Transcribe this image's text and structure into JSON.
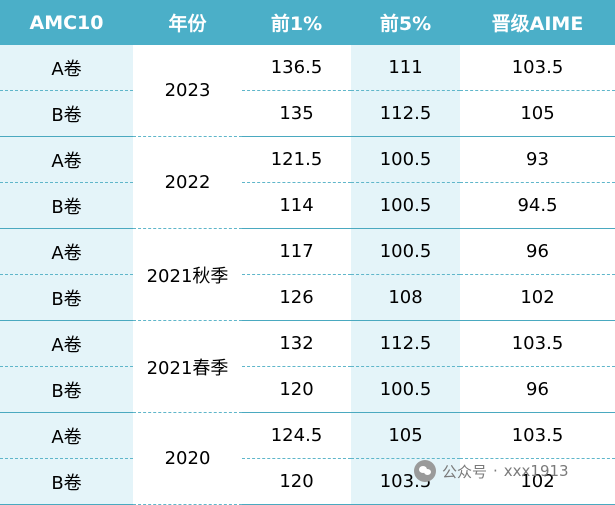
{
  "header": [
    "AMC10",
    "年份",
    "前1%",
    "前5%",
    "晋级AIME"
  ],
  "groups": [
    {
      "year": "2023",
      "rows": [
        {
          "paper": "A卷",
          "top1": "136.5",
          "top5": "111",
          "aime": "103.5"
        },
        {
          "paper": "B卷",
          "top1": "135",
          "top5": "112.5",
          "aime": "105"
        }
      ]
    },
    {
      "year": "2022",
      "rows": [
        {
          "paper": "A卷",
          "top1": "121.5",
          "top5": "100.5",
          "aime": "93"
        },
        {
          "paper": "B卷",
          "top1": "114",
          "top5": "100.5",
          "aime": "94.5"
        }
      ]
    },
    {
      "year": "2021秋季",
      "rows": [
        {
          "paper": "A卷",
          "top1": "117",
          "top5": "100.5",
          "aime": "96"
        },
        {
          "paper": "B卷",
          "top1": "126",
          "top5": "108",
          "aime": "102"
        }
      ]
    },
    {
      "year": "2021春季",
      "rows": [
        {
          "paper": "A卷",
          "top1": "132",
          "top5": "112.5",
          "aime": "103.5"
        },
        {
          "paper": "B卷",
          "top1": "120",
          "top5": "100.5",
          "aime": "96"
        }
      ]
    },
    {
      "year": "2020",
      "rows": [
        {
          "paper": "A卷",
          "top1": "124.5",
          "top5": "105",
          "aime": "103.5"
        },
        {
          "paper": "B卷",
          "top1": "120",
          "top5": "103.5",
          "aime": "102"
        }
      ]
    }
  ],
  "watermark": {
    "icon": "wechat-icon",
    "platform": "公众号",
    "separator": "·",
    "account": "xxx1913"
  },
  "colors": {
    "header_bg": "#4bafc8",
    "label_bg": "#e4f4f9",
    "border": "#5fb6ca"
  }
}
